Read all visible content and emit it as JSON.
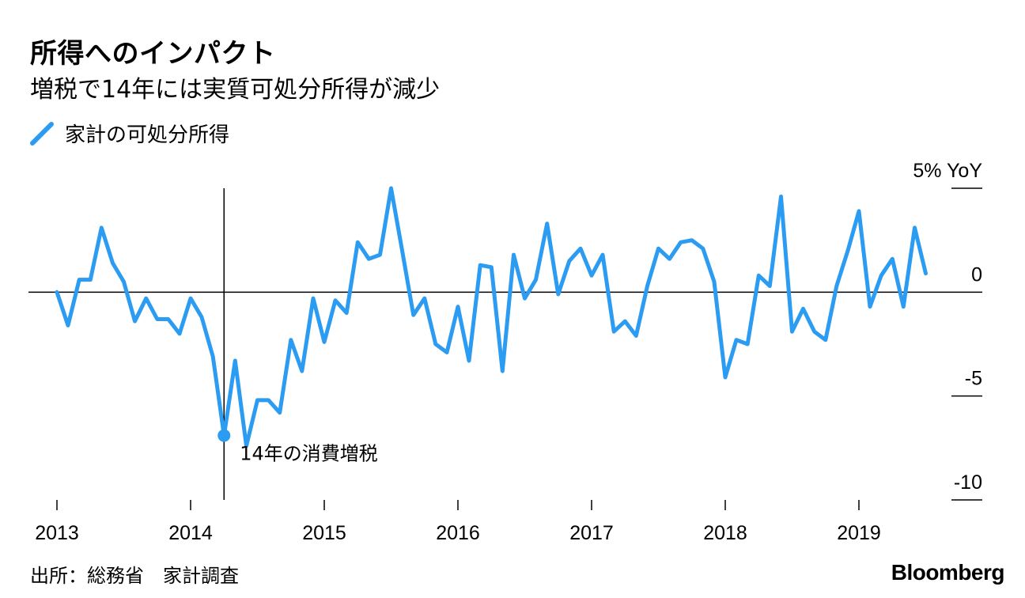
{
  "header": {
    "title": "所得へのインパクト",
    "subtitle": "増税で14年には実質可処分所得が減少"
  },
  "legend": {
    "label": "家計の可処分所得"
  },
  "footer": {
    "source": "出所：総務省　家計調査",
    "brand": "Bloomberg"
  },
  "colors": {
    "series": "#2b9cf2",
    "axis": "#000000"
  },
  "chart_data": {
    "type": "line",
    "title": "所得へのインパクト",
    "subtitle": "増税で14年には実質可処分所得が減少",
    "unit_label": "5% YoY",
    "ylim": [
      -10,
      5
    ],
    "yticks": [
      {
        "value": 5,
        "label": "5% YoY"
      },
      {
        "value": 0,
        "label": "0"
      },
      {
        "value": -5,
        "label": "-5"
      },
      {
        "value": -10,
        "label": "-10"
      }
    ],
    "xticks": [
      {
        "x": 2013,
        "label": "2013"
      },
      {
        "x": 2014,
        "label": "2014"
      },
      {
        "x": 2015,
        "label": "2015"
      },
      {
        "x": 2016,
        "label": "2016"
      },
      {
        "x": 2017,
        "label": "2017"
      },
      {
        "x": 2018,
        "label": "2018"
      },
      {
        "x": 2019,
        "label": "2019"
      }
    ],
    "xlim": [
      2012.8,
      2019.95
    ],
    "grid": false,
    "legend_position": "top-left",
    "series": [
      {
        "name": "家計の可処分所得",
        "x": [
          2013.0,
          2013.083,
          2013.167,
          2013.25,
          2013.333,
          2013.417,
          2013.5,
          2013.583,
          2013.667,
          2013.75,
          2013.833,
          2013.917,
          2014.0,
          2014.083,
          2014.167,
          2014.25,
          2014.333,
          2014.417,
          2014.5,
          2014.583,
          2014.667,
          2014.75,
          2014.833,
          2014.917,
          2015.0,
          2015.083,
          2015.167,
          2015.25,
          2015.333,
          2015.417,
          2015.5,
          2015.583,
          2015.667,
          2015.75,
          2015.833,
          2015.917,
          2016.0,
          2016.083,
          2016.167,
          2016.25,
          2016.333,
          2016.417,
          2016.5,
          2016.583,
          2016.667,
          2016.75,
          2016.833,
          2016.917,
          2017.0,
          2017.083,
          2017.167,
          2017.25,
          2017.333,
          2017.417,
          2017.5,
          2017.583,
          2017.667,
          2017.75,
          2017.833,
          2017.917,
          2018.0,
          2018.083,
          2018.167,
          2018.25,
          2018.333,
          2018.417,
          2018.5,
          2018.583,
          2018.667,
          2018.75,
          2018.833,
          2018.917,
          2019.0,
          2019.083,
          2019.167,
          2019.25,
          2019.333,
          2019.417,
          2019.5
        ],
        "y": [
          0,
          -1.6,
          0.6,
          0.6,
          3.1,
          1.4,
          0.5,
          -1.4,
          -0.3,
          -1.3,
          -1.3,
          -2.0,
          -0.3,
          -1.2,
          -3.1,
          -6.9,
          -3.3,
          -7.4,
          -5.2,
          -5.2,
          -5.8,
          -2.3,
          -3.8,
          -0.3,
          -2.4,
          -0.4,
          -1.0,
          2.4,
          1.6,
          1.8,
          5.0,
          2.0,
          -1.1,
          -0.3,
          -2.5,
          -2.9,
          -0.7,
          -3.3,
          1.3,
          1.2,
          -3.8,
          1.8,
          -0.3,
          0.6,
          3.3,
          -0.1,
          1.5,
          2.1,
          0.8,
          1.8,
          -1.9,
          -1.4,
          -2.1,
          0.3,
          2.1,
          1.6,
          2.4,
          2.5,
          2.1,
          0.5,
          -4.1,
          -2.3,
          -2.5,
          0.8,
          0.3,
          4.6,
          -1.9,
          -0.8,
          -1.9,
          -2.3,
          0.3,
          2.0,
          3.9,
          -0.7,
          0.8,
          1.6,
          -0.7,
          3.1,
          0.9
        ]
      }
    ],
    "annotations": [
      {
        "x": 2014.25,
        "y": -6.9,
        "label": "14年の消費増税"
      }
    ]
  }
}
